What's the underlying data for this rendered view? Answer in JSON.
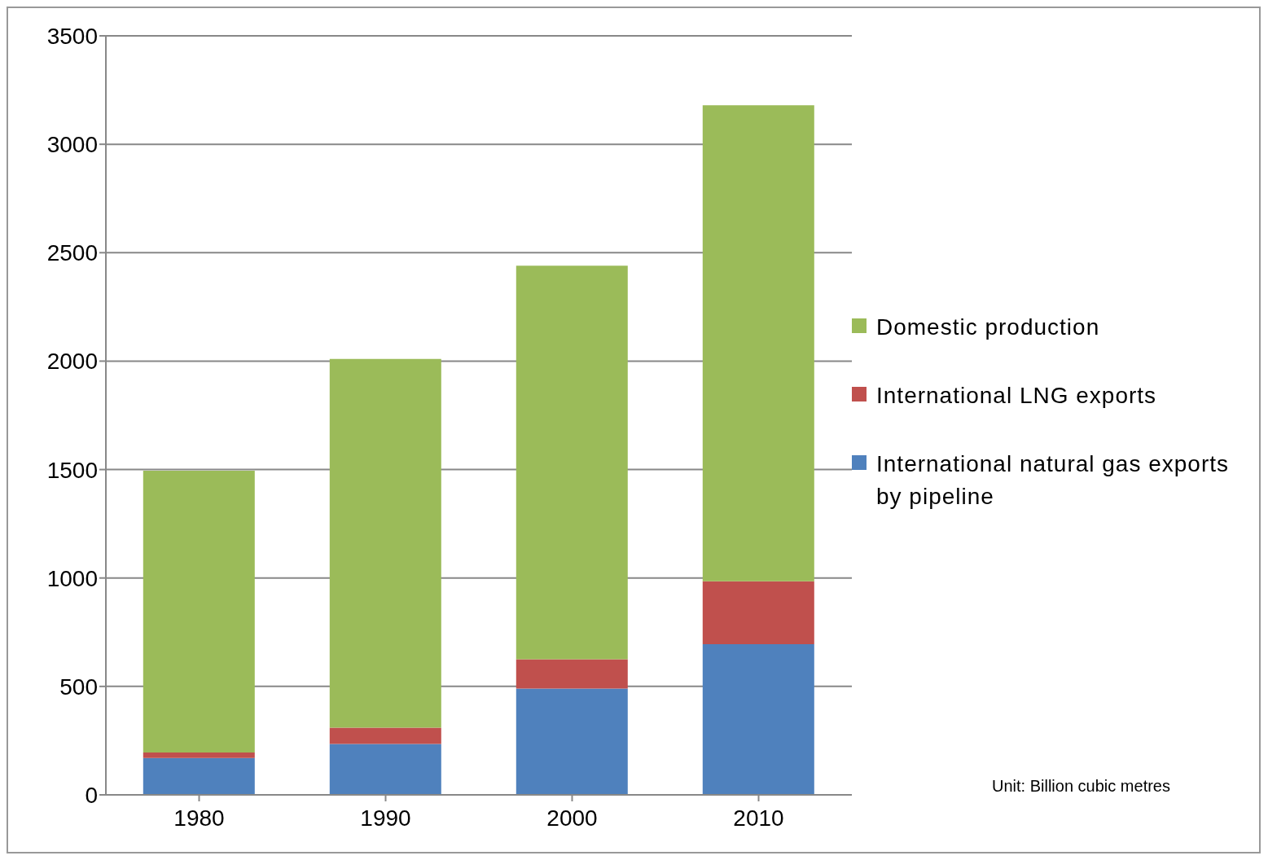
{
  "chart_data": {
    "type": "bar",
    "stacked": true,
    "categories": [
      "1980",
      "1990",
      "2000",
      "2010"
    ],
    "series": [
      {
        "name": "International natural gas exports by pipeline",
        "color": "#4f81bd",
        "values": [
          170,
          235,
          490,
          695
        ]
      },
      {
        "name": "International LNG exports",
        "color": "#c0504d",
        "values": [
          25,
          75,
          135,
          290
        ]
      },
      {
        "name": "Domestic production",
        "color": "#9bbb59",
        "values": [
          1300,
          1700,
          1815,
          2195
        ]
      }
    ],
    "ylim": [
      0,
      3500
    ],
    "yticks": [
      0,
      500,
      1000,
      1500,
      2000,
      2500,
      3000,
      3500
    ],
    "grid": "y",
    "legend": "right",
    "annotations": [
      "Unit: Billion cubic metres"
    ]
  }
}
